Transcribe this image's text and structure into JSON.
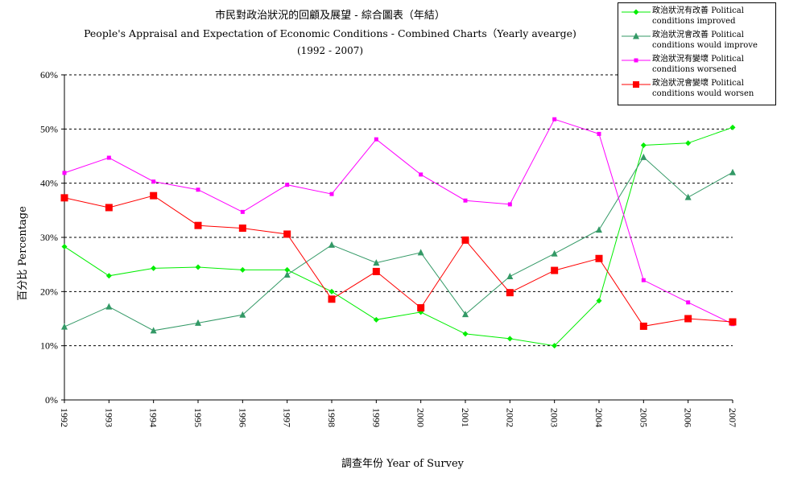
{
  "chart_data": {
    "type": "line",
    "title": "市民對政治狀況的回顧及展望 - 綜合圖表（年結）",
    "subtitle": "People's Appraisal and Expectation of Economic Conditions - Combined Charts（Yearly avearge)",
    "subtitle2": "(1992 - 2007)",
    "xlabel": "調查年份 Year of Survey",
    "ylabel": "百分比 Percentage",
    "ylim": [
      0,
      60
    ],
    "yticks": [
      "0%",
      "10%",
      "20%",
      "30%",
      "40%",
      "50%",
      "60%"
    ],
    "grid": true,
    "legend_position": "top-right",
    "x": [
      "1992",
      "1993",
      "1994",
      "1995",
      "1996",
      "1997",
      "1998",
      "1999",
      "2000",
      "2001",
      "2002",
      "2003",
      "2004",
      "2005",
      "2006",
      "2007"
    ],
    "series": [
      {
        "name_zh": "政治狀況有改善",
        "name_en": "Political conditions improved",
        "color": "#00ee00",
        "marker": "diamond",
        "values": [
          28.3,
          22.9,
          24.3,
          24.5,
          24.0,
          24.0,
          20.0,
          14.8,
          16.2,
          12.2,
          11.3,
          10.0,
          18.3,
          47.0,
          47.4,
          50.3
        ]
      },
      {
        "name_zh": "政治狀況會改善",
        "name_en": "Political conditions would improve",
        "color": "#339966",
        "marker": "triangle",
        "values": [
          13.5,
          17.2,
          12.8,
          14.2,
          15.7,
          23.1,
          28.6,
          25.3,
          27.2,
          15.8,
          22.8,
          27.0,
          31.4,
          44.8,
          37.4,
          42.0
        ]
      },
      {
        "name_zh": "政治狀況有變壞",
        "name_en": "Political conditions worsened",
        "color": "#ff00ff",
        "marker": "square-small",
        "values": [
          41.9,
          44.7,
          40.3,
          38.8,
          34.7,
          39.7,
          38.0,
          48.1,
          41.6,
          36.8,
          36.1,
          51.8,
          49.1,
          22.1,
          18.0,
          14.0
        ]
      },
      {
        "name_zh": "政治狀況會變壞",
        "name_en": "Political conditions would worsen",
        "color": "#ff0000",
        "marker": "square",
        "values": [
          37.3,
          35.5,
          37.7,
          32.2,
          31.7,
          30.6,
          18.6,
          23.7,
          17.0,
          29.5,
          19.8,
          23.9,
          26.1,
          13.6,
          15.0,
          14.4
        ]
      }
    ]
  }
}
